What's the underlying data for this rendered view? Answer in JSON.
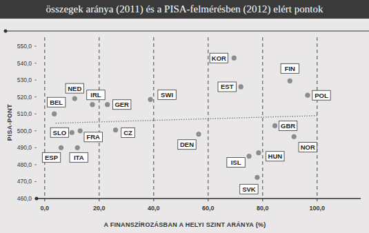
{
  "chart_data": {
    "type": "scatter",
    "title": "összegek aránya (2011) és a PISA-felmérésben (2012) elért pontok",
    "x_label": "A FINANSZÍROZÁSBAN A HELYI SZINT ARÁNYA (%)",
    "y_label": "PISA-PONT",
    "point_labels": [
      "BEL",
      "NED",
      "IRL",
      "GER",
      "SWI",
      "SLO",
      "FRA",
      "ESP",
      "ITA",
      "CZ",
      "DEN",
      "KOR",
      "EST",
      "FIN",
      "POL",
      "GBR",
      "NOR",
      "ISL",
      "HUN",
      "SVK"
    ],
    "x": [
      3.5,
      11,
      17.5,
      23,
      38.8,
      10,
      13,
      6,
      12,
      26,
      56.5,
      69.5,
      72,
      90,
      96.5,
      84.5,
      91.5,
      75,
      78.5,
      78
    ],
    "values": [
      510,
      519,
      515.5,
      515.5,
      518.5,
      499,
      500,
      490,
      490,
      500.5,
      498,
      543,
      526,
      529.5,
      521,
      503,
      496.5,
      485,
      487,
      472.5
    ],
    "trend_line": {
      "x": [
        4,
        100
      ],
      "y": [
        504.5,
        509
      ]
    },
    "color": "#8c8c8c",
    "marker": "circle",
    "grid": true,
    "xlim": [
      -3,
      116
    ],
    "ylim": [
      460,
      550
    ],
    "xticks": [
      {
        "value": 0,
        "label": "0,0"
      },
      {
        "value": 20,
        "label": "20,0"
      },
      {
        "value": 40,
        "label": "40,0"
      },
      {
        "value": 60,
        "label": "60,0"
      },
      {
        "value": 80,
        "label": "80,0"
      },
      {
        "value": 100,
        "label": "100,0"
      }
    ],
    "yticks": [
      {
        "value": 460,
        "label": "460,0"
      },
      {
        "value": 470,
        "label": "470,0"
      },
      {
        "value": 480,
        "label": "480,0"
      },
      {
        "value": 490,
        "label": "490,0"
      },
      {
        "value": 500,
        "label": "500,0"
      },
      {
        "value": 510,
        "label": "510,0"
      },
      {
        "value": 520,
        "label": "520,0"
      },
      {
        "value": 530,
        "label": "530,0"
      },
      {
        "value": 540,
        "label": "540,0"
      },
      {
        "value": 550,
        "label": "550,0"
      }
    ]
  }
}
